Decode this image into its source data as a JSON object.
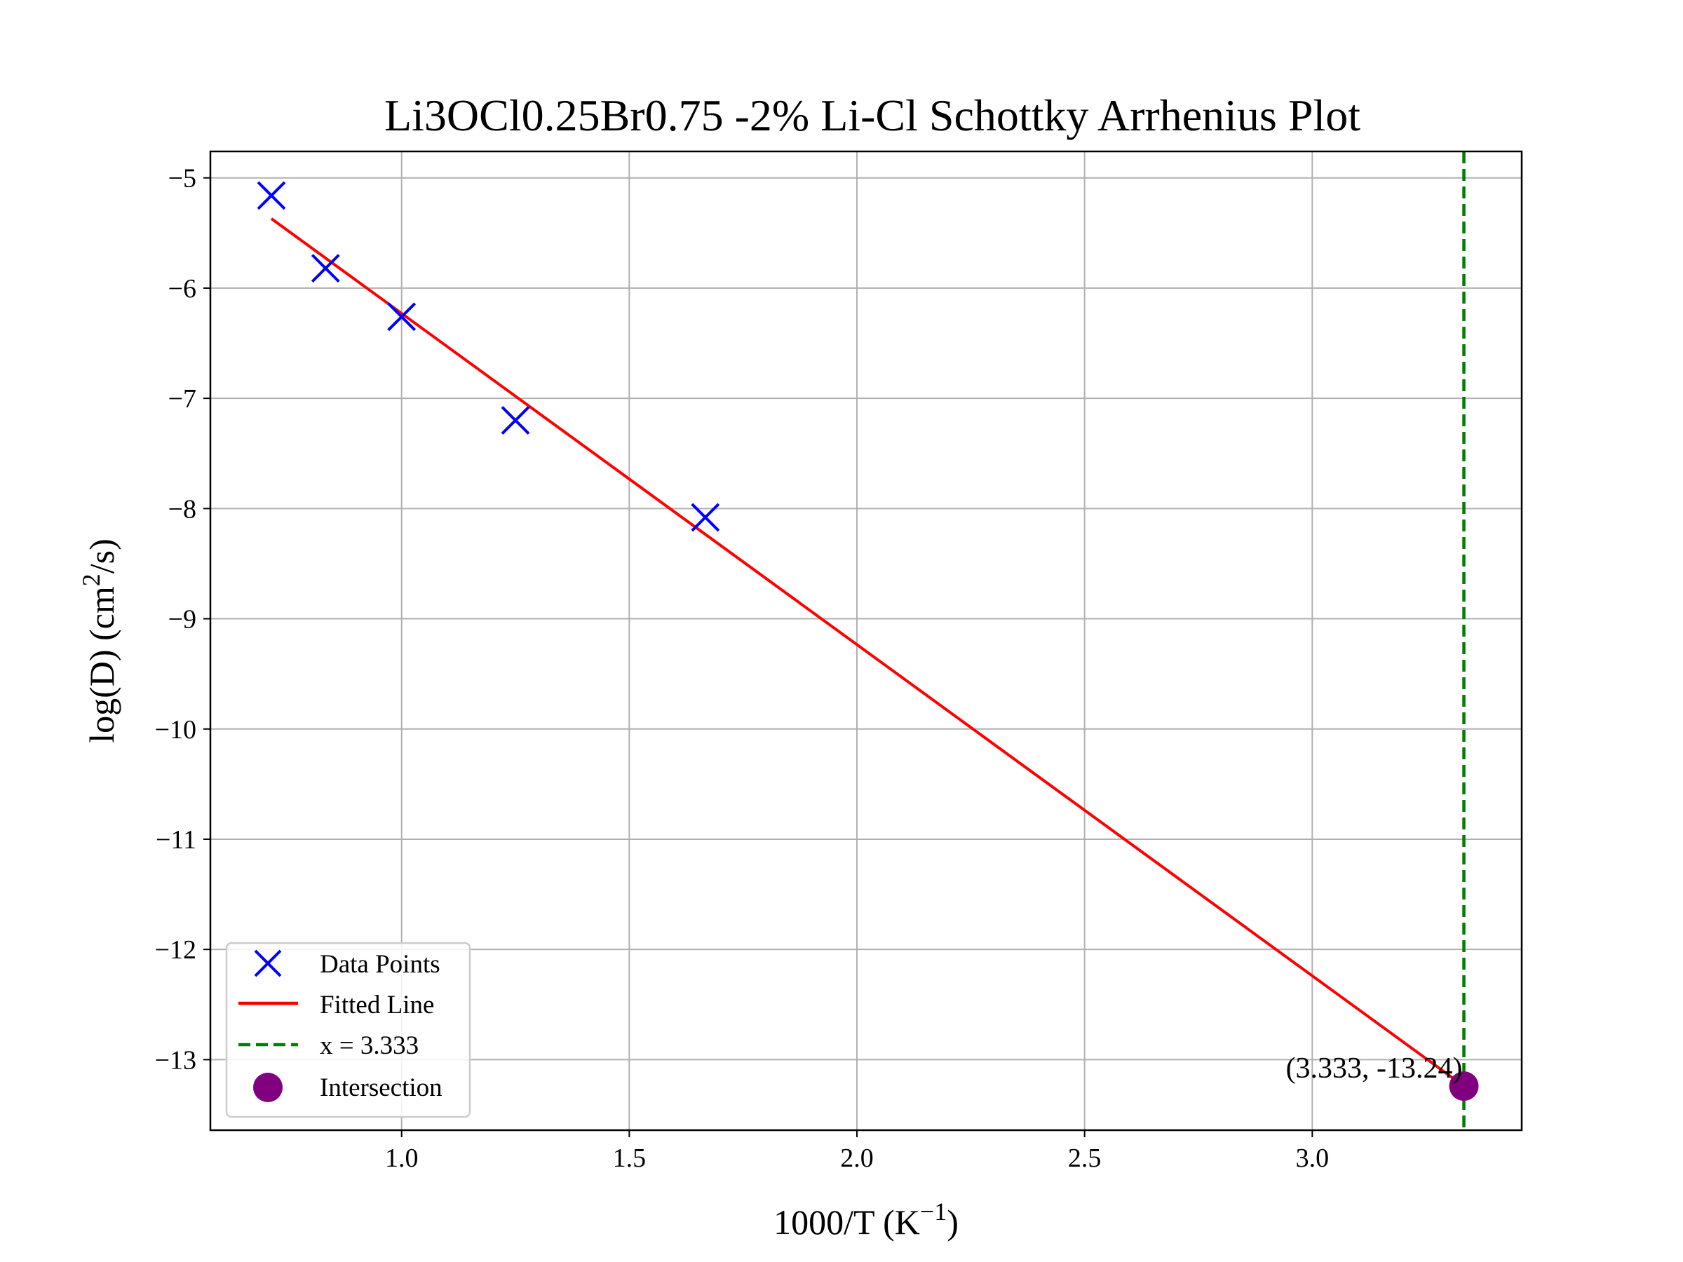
{
  "chart_data": {
    "type": "scatter",
    "title": "Li3OCl0.25Br0.75 -2% Li-Cl Schottky Arrhenius Plot",
    "xlabel": {
      "base": "1000/T (K",
      "sup": "−1",
      "tail": ")"
    },
    "ylabel": {
      "base": "log(D) (cm",
      "sup": "2",
      "tail": "/s)"
    },
    "xlim": [
      0.58,
      3.46
    ],
    "ylim": [
      -13.64,
      -4.76
    ],
    "xticks": [
      1.0,
      1.5,
      2.0,
      2.5,
      3.0
    ],
    "xtick_labels": [
      "1.0",
      "1.5",
      "2.0",
      "2.5",
      "3.0"
    ],
    "yticks": [
      -5,
      -6,
      -7,
      -8,
      -9,
      -10,
      -11,
      -12,
      -13
    ],
    "ytick_labels": [
      "−5",
      "−6",
      "−7",
      "−8",
      "−9",
      "−10",
      "−11",
      "−12",
      "−13"
    ],
    "grid": true,
    "legend_position": "lower left",
    "series": [
      {
        "name": "Data Points",
        "kind": "scatter",
        "marker": "x",
        "color": "#0000ff",
        "x": [
          0.714,
          0.833,
          1.0,
          1.25,
          1.667
        ],
        "y": [
          -5.16,
          -5.82,
          -6.26,
          -7.2,
          -8.08
        ]
      },
      {
        "name": "Fitted Line",
        "kind": "line",
        "color": "#ff0000",
        "x": [
          0.714,
          3.333
        ],
        "y": [
          -5.37,
          -13.24
        ]
      },
      {
        "name": "x = 3.333",
        "kind": "vline",
        "style": "dashed",
        "color": "#008000",
        "x": 3.333
      },
      {
        "name": "Intersection",
        "kind": "point",
        "color": "#800080",
        "x": 3.333,
        "y": -13.24
      }
    ],
    "annotations": [
      {
        "text": "(3.333, -13.24)",
        "x": 3.333,
        "y": -13.24
      }
    ]
  }
}
